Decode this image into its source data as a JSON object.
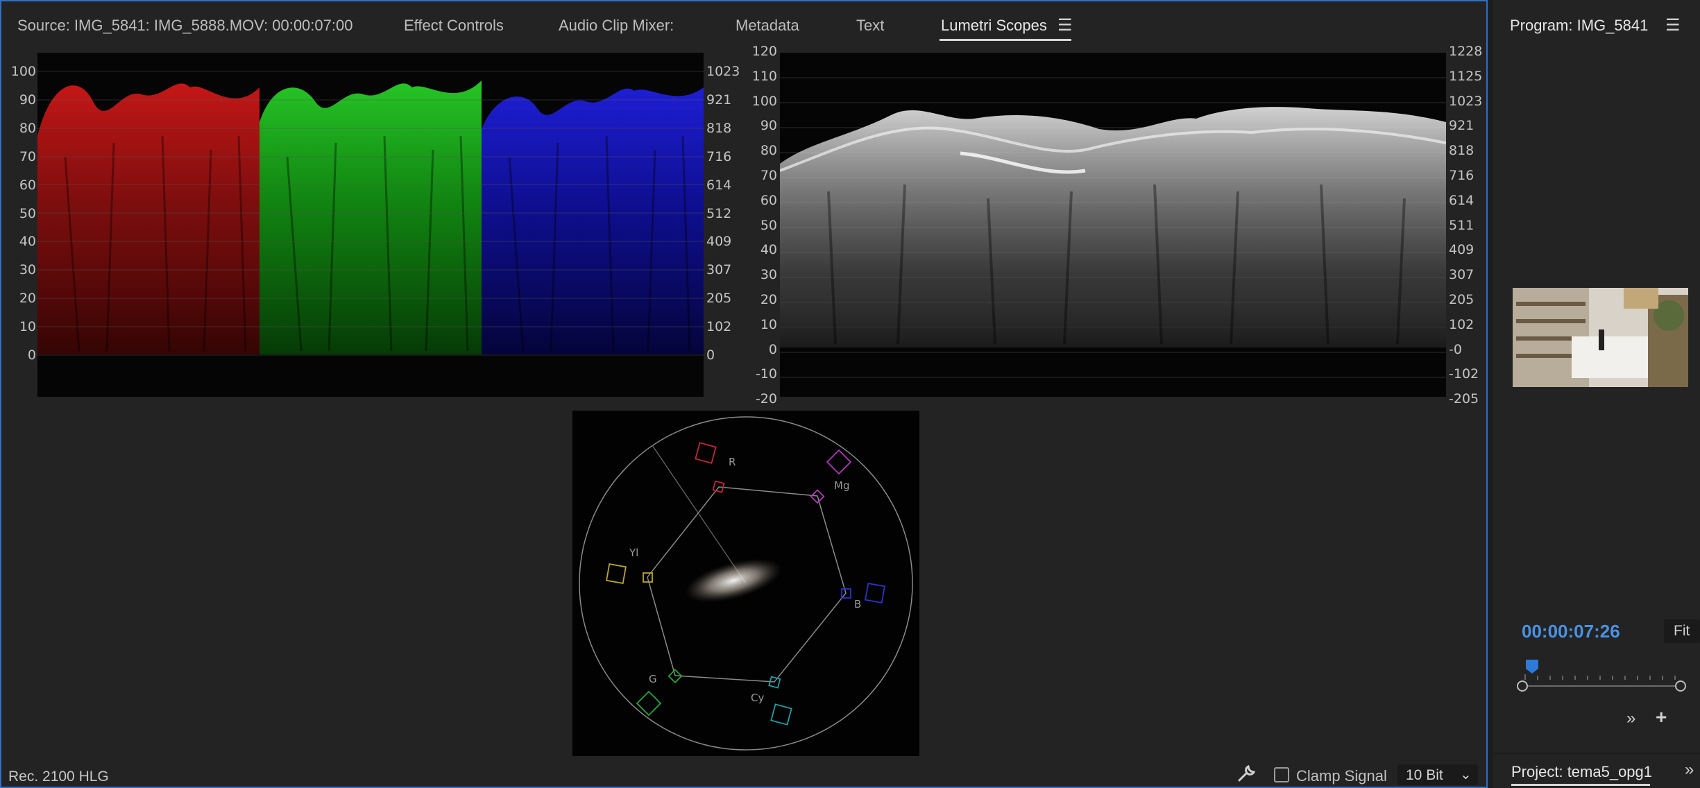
{
  "tabs": {
    "source": "Source: IMG_5841: IMG_5888.MOV: 00:00:07:00",
    "effect_controls": "Effect Controls",
    "audio_mixer": "Audio Clip Mixer:",
    "metadata": "Metadata",
    "text": "Text",
    "lumetri": "Lumetri Scopes"
  },
  "parade": {
    "left_scale": [
      "100",
      "90",
      "80",
      "70",
      "60",
      "50",
      "40",
      "30",
      "20",
      "10",
      "0"
    ],
    "right_scale": [
      "1023",
      "921",
      "818",
      "716",
      "614",
      "512",
      "409",
      "307",
      "205",
      "102",
      "0"
    ]
  },
  "waveform": {
    "left_scale": [
      "120",
      "110",
      "100",
      "90",
      "80",
      "70",
      "60",
      "50",
      "40",
      "30",
      "20",
      "10",
      "0",
      "-10",
      "-20"
    ],
    "right_scale": [
      "1228",
      "1125",
      "1023",
      "921",
      "818",
      "716",
      "614",
      "511",
      "409",
      "307",
      "205",
      "102",
      "-0",
      "-102",
      "-205"
    ]
  },
  "vectorscope": {
    "labels": {
      "r": "R",
      "mg": "Mg",
      "b": "B",
      "cy": "Cy",
      "g": "G",
      "yl": "Yl"
    },
    "colors": {
      "r": "#c0283a",
      "mg": "#b03ab8",
      "b": "#2a34c8",
      "cy": "#20a0a8",
      "g": "#2ca23a",
      "yl": "#b8a830"
    }
  },
  "bottom_bar": {
    "color_space": "Rec. 2100 HLG",
    "clamp_label": "Clamp Signal",
    "bit_depth": "10 Bit"
  },
  "program": {
    "title": "Program: IMG_5841",
    "timecode": "00:00:07:26",
    "fit": "Fit"
  },
  "project": {
    "title": "Project: tema5_opg1"
  },
  "colors": {
    "accent": "#2e6fc7",
    "timecode": "#4a92e4"
  }
}
